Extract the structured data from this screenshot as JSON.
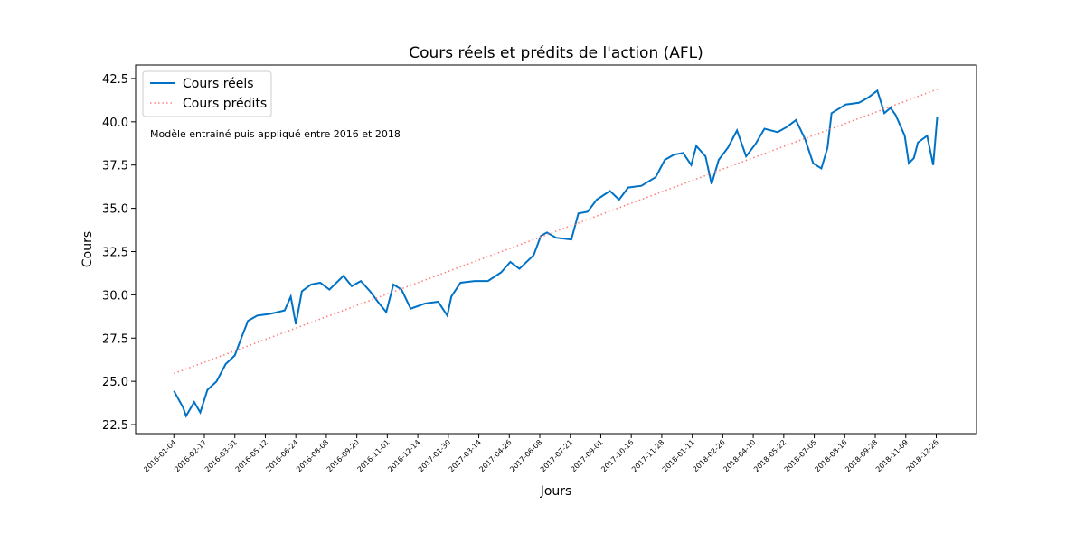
{
  "chart_data": {
    "type": "line",
    "title": "Cours réels et prédits de l'action (AFL)",
    "xlabel": "Jours",
    "ylabel": "Cours",
    "annotation": "Modèle entrainé puis appliqué entre 2016 et 2018",
    "legend": "upper left",
    "xlim": [
      -37.6,
      789.6
    ],
    "ylim": [
      21.98,
      43.28
    ],
    "yticks": [
      22.5,
      25.0,
      27.5,
      30.0,
      32.5,
      35.0,
      37.5,
      40.0,
      42.5
    ],
    "xticks": [
      {
        "value": 0,
        "label": "2016-01-04"
      },
      {
        "value": 30,
        "label": "2016-02-17"
      },
      {
        "value": 60,
        "label": "2016-03-31"
      },
      {
        "value": 90,
        "label": "2016-05-12"
      },
      {
        "value": 120,
        "label": "2016-06-24"
      },
      {
        "value": 150,
        "label": "2016-08-08"
      },
      {
        "value": 180,
        "label": "2016-09-20"
      },
      {
        "value": 210,
        "label": "2016-11-01"
      },
      {
        "value": 240,
        "label": "2016-12-14"
      },
      {
        "value": 270,
        "label": "2017-01-30"
      },
      {
        "value": 300,
        "label": "2017-03-14"
      },
      {
        "value": 330,
        "label": "2017-04-26"
      },
      {
        "value": 360,
        "label": "2017-06-08"
      },
      {
        "value": 390,
        "label": "2017-07-21"
      },
      {
        "value": 420,
        "label": "2017-09-01"
      },
      {
        "value": 450,
        "label": "2017-10-16"
      },
      {
        "value": 480,
        "label": "2017-11-28"
      },
      {
        "value": 510,
        "label": "2018-01-11"
      },
      {
        "value": 540,
        "label": "2018-02-26"
      },
      {
        "value": 570,
        "label": "2018-04-10"
      },
      {
        "value": 600,
        "label": "2018-05-22"
      },
      {
        "value": 630,
        "label": "2018-07-05"
      },
      {
        "value": 660,
        "label": "2018-08-16"
      },
      {
        "value": 690,
        "label": "2018-09-28"
      },
      {
        "value": 720,
        "label": "2018-11-09"
      },
      {
        "value": 750,
        "label": "2018-12-26"
      }
    ],
    "series": [
      {
        "name": "Cours réels",
        "color": "#0072c6",
        "style": "solid",
        "x": [
          0,
          9,
          12,
          20,
          26,
          33,
          42,
          51,
          60,
          67,
          73,
          82,
          95,
          109,
          115,
          120,
          126,
          135,
          144,
          153,
          167,
          175,
          184,
          193,
          202,
          209,
          216,
          224,
          233,
          247,
          260,
          269,
          273,
          282,
          296,
          309,
          322,
          331,
          340,
          354,
          361,
          367,
          376,
          391,
          398,
          407,
          416,
          429,
          438,
          447,
          460,
          474,
          483,
          492,
          501,
          509,
          514,
          523,
          529,
          536,
          545,
          554,
          563,
          572,
          581,
          594,
          603,
          612,
          621,
          629,
          637,
          643,
          647,
          661,
          674,
          683,
          692,
          699,
          705,
          710,
          719,
          723,
          728,
          732,
          741,
          747,
          751
        ],
        "values": [
          24.45,
          23.5,
          23.0,
          23.8,
          23.2,
          24.5,
          25.0,
          26.0,
          26.5,
          27.6,
          28.5,
          28.8,
          28.9,
          29.1,
          29.9,
          28.3,
          30.2,
          30.6,
          30.7,
          30.3,
          31.1,
          30.5,
          30.8,
          30.2,
          29.5,
          29.0,
          30.6,
          30.3,
          29.2,
          29.5,
          29.6,
          28.8,
          29.9,
          30.7,
          30.8,
          30.8,
          31.3,
          31.9,
          31.5,
          32.3,
          33.4,
          33.6,
          33.3,
          33.2,
          34.7,
          34.8,
          35.5,
          36.0,
          35.5,
          36.2,
          36.3,
          36.8,
          37.8,
          38.1,
          38.2,
          37.5,
          38.6,
          38.0,
          36.4,
          37.8,
          38.5,
          39.5,
          38.0,
          38.7,
          39.6,
          39.4,
          39.7,
          40.1,
          39.0,
          37.6,
          37.3,
          38.5,
          40.5,
          41.0,
          41.1,
          41.4,
          41.8,
          40.5,
          40.8,
          40.4,
          39.2,
          37.6,
          37.9,
          38.8,
          39.2,
          37.5,
          40.3
        ]
      },
      {
        "name": "Cours prédits",
        "color": "#ff8080",
        "style": "dotted",
        "x": [
          0,
          752
        ],
        "values": [
          25.45,
          41.9
        ]
      }
    ]
  }
}
